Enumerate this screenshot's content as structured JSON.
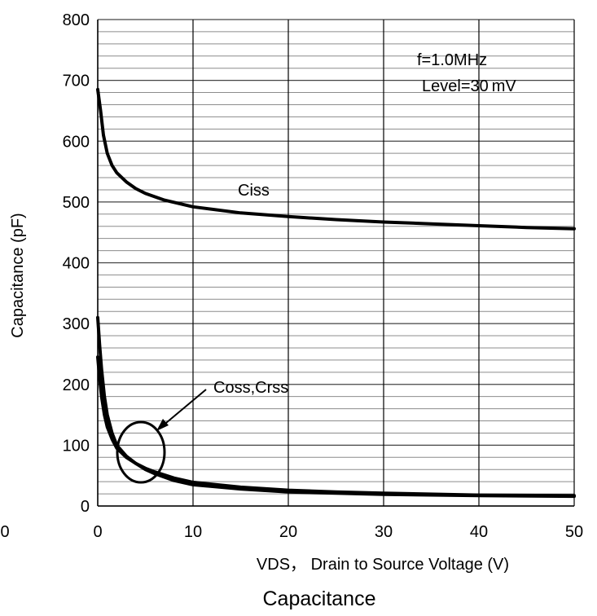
{
  "chart_data": {
    "type": "line",
    "title": "Capacitance",
    "xlabel": "VDS， Drain to Source Voltage (V)",
    "ylabel": "Capacitance (pF)",
    "xlim": [
      0,
      50
    ],
    "ylim": [
      0,
      800
    ],
    "x_ticks": [
      "0",
      "10",
      "20",
      "30",
      "40",
      "50"
    ],
    "y_ticks": [
      "0",
      "100",
      "200",
      "300",
      "400",
      "500",
      "600",
      "700",
      "800"
    ],
    "stray_left_tick": "0",
    "grid": true,
    "annotations": {
      "condition_line1": "f=1.0MHz",
      "condition_line2": "Level=30 mV",
      "ciss_label": "Ciss",
      "coss_crss_label": "Coss,Crss"
    },
    "series": [
      {
        "name": "Ciss",
        "x": [
          0,
          0.3,
          0.6,
          1,
          1.5,
          2,
          3,
          4,
          5,
          7,
          10,
          15,
          20,
          25,
          30,
          35,
          40,
          45,
          50
        ],
        "y": [
          685,
          650,
          610,
          580,
          560,
          548,
          533,
          522,
          514,
          503,
          492,
          482,
          476,
          471,
          467,
          464,
          461,
          458,
          456
        ]
      },
      {
        "name": "Coss",
        "x": [
          0,
          0.2,
          0.4,
          0.7,
          1,
          1.5,
          2,
          3,
          4,
          5,
          6,
          8,
          10,
          15,
          20,
          25,
          30,
          40,
          50
        ],
        "y": [
          310,
          265,
          225,
          180,
          150,
          120,
          100,
          82,
          70,
          60,
          53,
          42,
          35,
          28,
          23,
          21,
          19,
          17,
          16
        ]
      },
      {
        "name": "Crss",
        "x": [
          0,
          0.2,
          0.4,
          0.7,
          1,
          1.5,
          2,
          3,
          4,
          5,
          6,
          8,
          10,
          15,
          20,
          25,
          30,
          40,
          50
        ],
        "y": [
          245,
          210,
          180,
          150,
          130,
          110,
          95,
          80,
          70,
          62,
          56,
          46,
          39,
          31,
          26,
          23,
          21,
          18,
          17
        ]
      }
    ]
  }
}
